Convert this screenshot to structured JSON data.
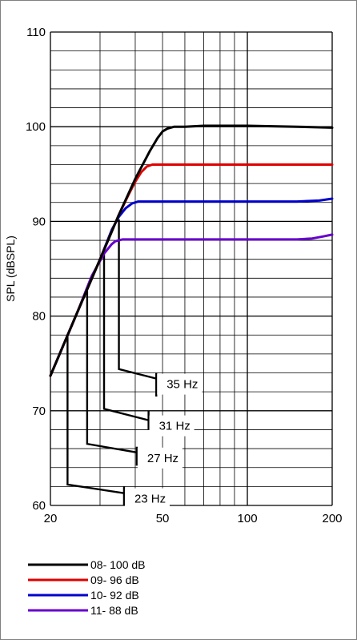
{
  "chart_data": {
    "type": "line",
    "title": "",
    "xlabel": "",
    "ylabel": "SPL (dBSPL)",
    "x_scale": "log",
    "xlim": [
      20,
      200
    ],
    "ylim": [
      60,
      110
    ],
    "x_ticks": [
      "20",
      "50",
      "100",
      "200"
    ],
    "y_ticks": [
      "60",
      "70",
      "80",
      "90",
      "100",
      "110"
    ],
    "grid": true,
    "legend_position": "bottom",
    "series": [
      {
        "name": "08- 100 dB",
        "color": "#000000",
        "x": [
          20,
          25,
          30,
          35,
          40,
          45,
          48,
          50,
          52,
          55,
          60,
          70,
          100,
          150,
          200
        ],
        "y": [
          73.7,
          80.5,
          86,
          90.7,
          94.5,
          97.4,
          98.8,
          99.5,
          99.8,
          100,
          100,
          100.1,
          100.1,
          100,
          99.9
        ]
      },
      {
        "name": "09- 96 dB",
        "color": "#e00000",
        "x": [
          20,
          25,
          30,
          35,
          38,
          40,
          42,
          44,
          46,
          50,
          60,
          100,
          150,
          200
        ],
        "y": [
          73.7,
          80.5,
          86,
          90.7,
          92.9,
          94.2,
          95.2,
          95.8,
          96,
          96,
          96,
          96,
          96,
          96
        ]
      },
      {
        "name": "10- 92 dB",
        "color": "#0000cc",
        "x": [
          20,
          25,
          30,
          33,
          35,
          37,
          39,
          41,
          45,
          60,
          100,
          150,
          180,
          200
        ],
        "y": [
          73.7,
          80.5,
          86,
          89.1,
          90.5,
          91.4,
          91.9,
          92.1,
          92.1,
          92.1,
          92.1,
          92.1,
          92.2,
          92.4
        ]
      },
      {
        "name": "11- 88 dB",
        "color": "#6600cc",
        "x": [
          20,
          25,
          28,
          31,
          33,
          34,
          35,
          36,
          38,
          50,
          100,
          150,
          170,
          185,
          200
        ],
        "y": [
          73.7,
          80.5,
          84.2,
          86.6,
          87.6,
          87.9,
          88.0,
          88.1,
          88.1,
          88.1,
          88.1,
          88.1,
          88.2,
          88.4,
          88.6
        ]
      }
    ],
    "annotations": [
      {
        "label": "35 Hz",
        "fx": 35,
        "fy": 90.2,
        "yb": 74.4,
        "xe": 47.5,
        "ye": 73.4,
        "ymin": 71.5,
        "ymax": 74.0
      },
      {
        "label": "31 Hz",
        "fx": 31,
        "fy": 86.8,
        "yb": 70.2,
        "xe": 44.6,
        "ye": 69.0,
        "ymin": 68.0,
        "ymax": 70.0
      },
      {
        "label": "27 Hz",
        "fx": 27,
        "fy": 82.7,
        "yb": 66.5,
        "xe": 40.5,
        "ye": 65.6,
        "ymin": 64.2,
        "ymax": 66.2
      },
      {
        "label": "23 Hz",
        "fx": 23,
        "fy": 77.8,
        "yb": 62.2,
        "xe": 36.5,
        "ye": 61.3,
        "ymin": 60.0,
        "ymax": 62.0
      }
    ]
  }
}
